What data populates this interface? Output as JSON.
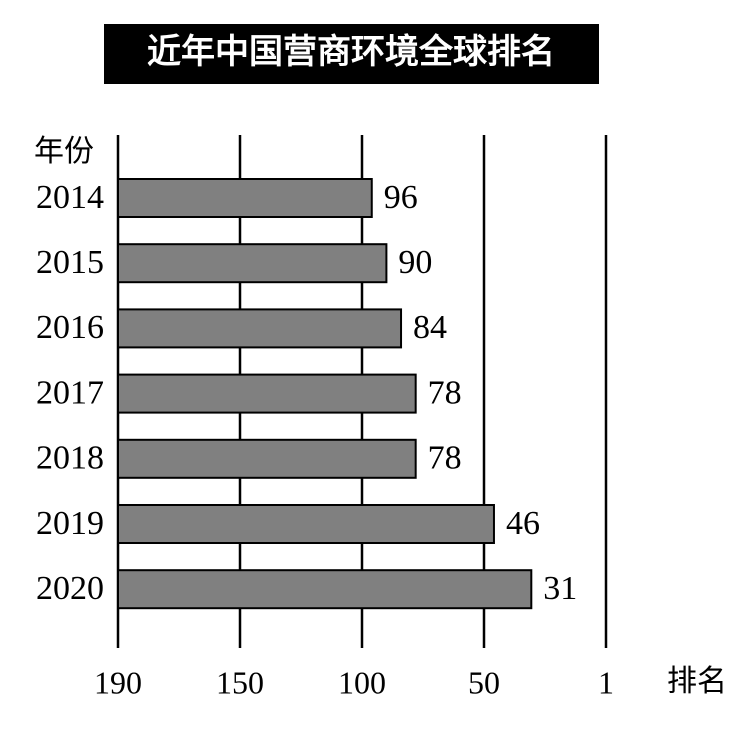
{
  "chart_data": {
    "type": "barh",
    "title": "近年中国营商环境全球排名",
    "ylabel": "年份",
    "xlabel": "排名",
    "categories": [
      "2014",
      "2015",
      "2016",
      "2017",
      "2018",
      "2019",
      "2020"
    ],
    "values": [
      96,
      90,
      84,
      78,
      78,
      46,
      31
    ],
    "color": "#808080",
    "xlim": [
      190,
      1
    ],
    "xticks": [
      190,
      150,
      100,
      50,
      1
    ],
    "grid": true
  }
}
